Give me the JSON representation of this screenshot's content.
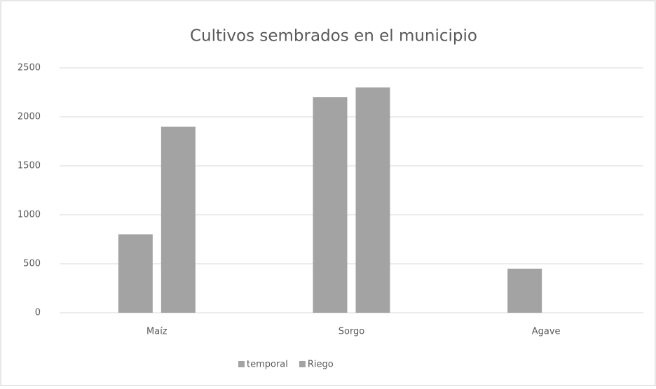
{
  "chart_data": {
    "type": "bar",
    "title": "Cultivos sembrados en el municipio",
    "categories": [
      "Maíz",
      "Sorgo",
      "Agave"
    ],
    "series": [
      {
        "name": "temporal",
        "color": "#a3a3a3",
        "values": [
          800,
          2200,
          450
        ]
      },
      {
        "name": "Riego",
        "color": "#a3a3a3",
        "values": [
          1900,
          2300,
          0
        ]
      }
    ],
    "ylim": [
      0,
      2500
    ],
    "yticks": [
      0,
      500,
      1000,
      1500,
      2000,
      2500
    ],
    "grid": true,
    "legend": "bottom"
  }
}
